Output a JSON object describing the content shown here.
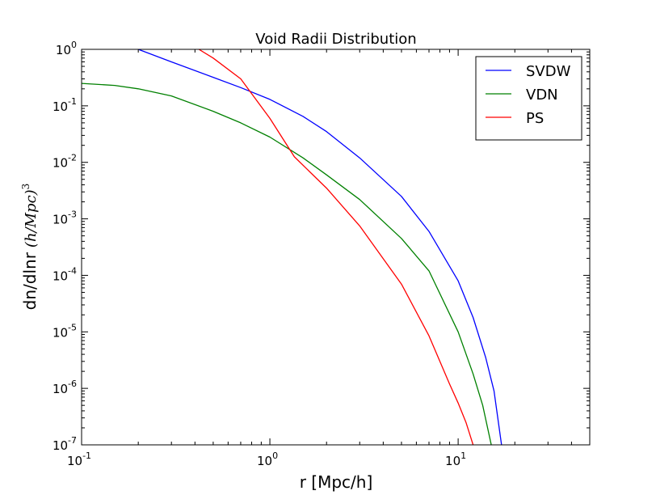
{
  "chart_data": {
    "type": "line",
    "title": "Void Radii Distribution",
    "xlabel": "r [Mpc/h]",
    "ylabel_prefix": "dn/dlnr",
    "ylabel_unit": "(h/Mpc)",
    "ylabel_unit_exp": "3",
    "x_scale": "log",
    "y_scale": "log",
    "xlim": [
      0.1,
      50
    ],
    "ylim": [
      1e-07,
      1
    ],
    "grid": false,
    "legend_position": "top-right",
    "x_ticks": [
      {
        "base": "10",
        "exp": "-1",
        "value": 0.1
      },
      {
        "base": "10",
        "exp": "0",
        "value": 1
      },
      {
        "base": "10",
        "exp": "1",
        "value": 10
      }
    ],
    "y_ticks": [
      {
        "base": "10",
        "exp": "0",
        "value": 1
      },
      {
        "base": "10",
        "exp": "-1",
        "value": 0.1
      },
      {
        "base": "10",
        "exp": "-2",
        "value": 0.01
      },
      {
        "base": "10",
        "exp": "-3",
        "value": 0.001
      },
      {
        "base": "10",
        "exp": "-4",
        "value": 0.0001
      },
      {
        "base": "10",
        "exp": "-5",
        "value": 1e-05
      },
      {
        "base": "10",
        "exp": "-6",
        "value": 1e-06
      },
      {
        "base": "10",
        "exp": "-7",
        "value": 1e-07
      }
    ],
    "series": [
      {
        "name": "SVDW",
        "color": "#0000ff",
        "x": [
          0.2,
          0.3,
          0.5,
          0.7,
          1.0,
          1.5,
          2.0,
          3.0,
          5.0,
          7.0,
          10.0,
          12.0,
          14.0,
          15.5,
          17.0
        ],
        "y": [
          1.0,
          0.6,
          0.32,
          0.21,
          0.13,
          0.065,
          0.035,
          0.012,
          0.0025,
          0.0006,
          8e-05,
          1.8e-05,
          3.5e-06,
          9e-07,
          1e-07
        ]
      },
      {
        "name": "VDN",
        "color": "#008000",
        "x": [
          0.1,
          0.15,
          0.2,
          0.3,
          0.5,
          0.7,
          1.0,
          1.5,
          2.0,
          3.0,
          5.0,
          7.0,
          10.0,
          12.0,
          13.5,
          15.0
        ],
        "y": [
          0.25,
          0.23,
          0.2,
          0.15,
          0.08,
          0.05,
          0.028,
          0.012,
          0.006,
          0.0022,
          0.00045,
          0.00012,
          1e-05,
          1.8e-06,
          5e-07,
          1e-07
        ]
      },
      {
        "name": "PS",
        "color": "#ff0000",
        "x": [
          0.42,
          0.5,
          0.7,
          1.0,
          1.35,
          2.0,
          3.0,
          5.0,
          7.0,
          9.0,
          10.0,
          11.0,
          12.0
        ],
        "y": [
          1.0,
          0.7,
          0.3,
          0.06,
          0.0125,
          0.0035,
          0.00075,
          7e-05,
          8.5e-06,
          1.2e-06,
          5.5e-07,
          2.5e-07,
          1e-07
        ]
      }
    ]
  }
}
